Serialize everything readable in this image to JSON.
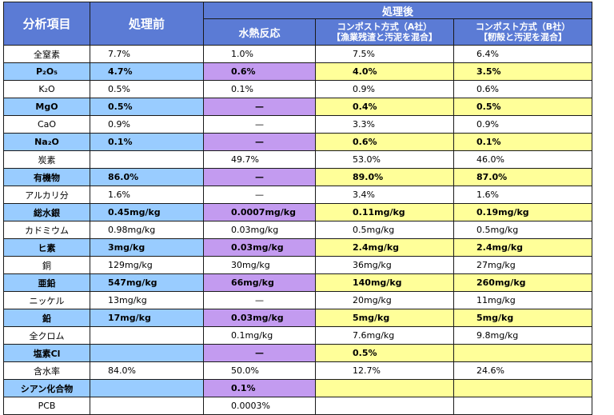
{
  "headers": {
    "item": "分析項目",
    "before": "処理前",
    "after": "処理後",
    "hydro": "水熱反応",
    "comp_a": "コンポスト方式（A社）\n【漁業残渣と汚泥を混合】",
    "comp_b": "コンポスト方式（B社）\n【籾殻と汚泥を混合】"
  },
  "rows": [
    {
      "item": "全窒素",
      "before": "7.7%",
      "hydro": "1.0%",
      "a": "7.5%",
      "b": "6.4%",
      "hl": false
    },
    {
      "item": "P₂O₅",
      "before": "4.7%",
      "hydro": "0.6%",
      "a": "4.0%",
      "b": "3.5%",
      "hl": true
    },
    {
      "item": "K₂O",
      "before": "0.5%",
      "hydro": "0.1%",
      "a": "0.9%",
      "b": "0.6%",
      "hl": false
    },
    {
      "item": "MgO",
      "before": "0.5%",
      "hydro": "—",
      "a": "0.4%",
      "b": "0.5%",
      "hl": true
    },
    {
      "item": "CaO",
      "before": "0.9%",
      "hydro": "—",
      "a": "3.3%",
      "b": "0.9%",
      "hl": false
    },
    {
      "item": "Na₂O",
      "before": "0.1%",
      "hydro": "—",
      "a": "0.6%",
      "b": "0.1%",
      "hl": true
    },
    {
      "item": "炭素",
      "before": "",
      "hydro": "49.7%",
      "a": "53.0%",
      "b": "46.0%",
      "hl": false
    },
    {
      "item": "有機物",
      "before": "86.0%",
      "hydro": "—",
      "a": "89.0%",
      "b": "87.0%",
      "hl": true
    },
    {
      "item": "アルカリ分",
      "before": "1.6%",
      "hydro": "—",
      "a": "3.4%",
      "b": "1.6%",
      "hl": false
    },
    {
      "item": "総水銀",
      "before": "0.45mg/kg",
      "hydro": "0.0007mg/kg",
      "a": "0.11mg/kg",
      "b": "0.19mg/kg",
      "hl": true
    },
    {
      "item": "カドミウム",
      "before": "0.98mg/kg",
      "hydro": "0.03mg/kg",
      "a": "0.5mg/kg",
      "b": "0.5mg/kg",
      "hl": false
    },
    {
      "item": "ヒ素",
      "before": "3mg/kg",
      "hydro": "0.03mg/kg",
      "a": "2.4mg/kg",
      "b": "2.4mg/kg",
      "hl": true
    },
    {
      "item": "銅",
      "before": "129mg/kg",
      "hydro": "30mg/kg",
      "a": "36mg/kg",
      "b": "27mg/kg",
      "hl": false
    },
    {
      "item": "亜鉛",
      "before": "547mg/kg",
      "hydro": "66mg/kg",
      "a": "140mg/kg",
      "b": "260mg/kg",
      "hl": true
    },
    {
      "item": "ニッケル",
      "before": "13mg/kg",
      "hydro": "—",
      "a": "20mg/kg",
      "b": "11mg/kg",
      "hl": false
    },
    {
      "item": "鉛",
      "before": "17mg/kg",
      "hydro": "0.03mg/kg",
      "a": "5mg/kg",
      "b": "5mg/kg",
      "hl": true
    },
    {
      "item": "全クロム",
      "before": "",
      "hydro": "0.1mg/kg",
      "a": "7.6mg/kg",
      "b": "9.8mg/kg",
      "hl": false
    },
    {
      "item": "塩素Cl",
      "before": "",
      "hydro": "—",
      "a": "0.5%",
      "b": "",
      "hl": true
    },
    {
      "item": "含水率",
      "before": "84.0%",
      "hydro": "50.0%",
      "a": "12.7%",
      "b": "24.6%",
      "hl": false
    },
    {
      "item": "シアン化合物",
      "before": "",
      "hydro": "0.1%",
      "a": "",
      "b": "",
      "hl": true
    },
    {
      "item": "PCB",
      "before": "",
      "hydro": "0.0003%",
      "a": "",
      "b": "",
      "hl": false
    }
  ]
}
